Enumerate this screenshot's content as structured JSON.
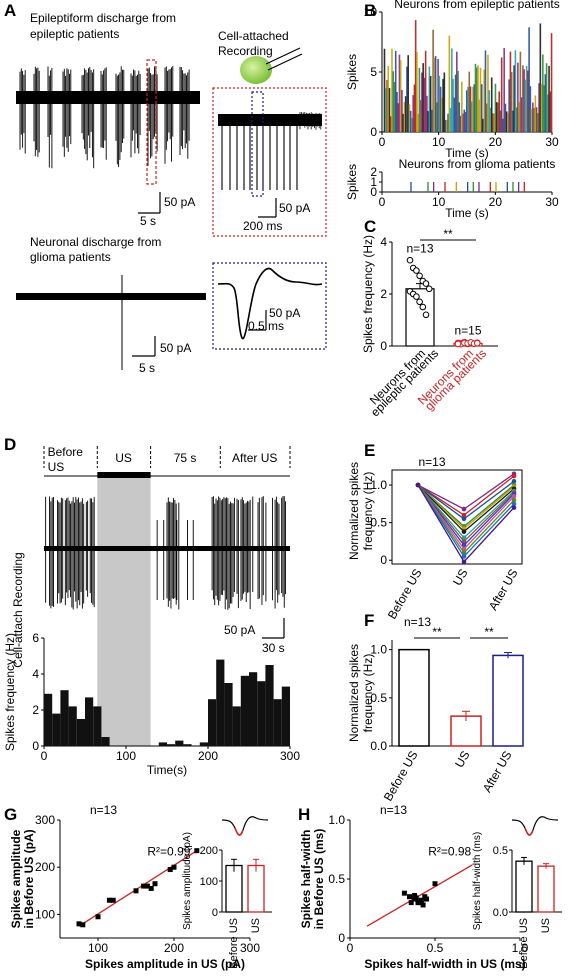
{
  "panels": {
    "A": {
      "letter": "A",
      "title_epi": "Epileptiform discharge from epileptic patients",
      "title_epi_line1": "Epileptiform discharge from",
      "title_epi_line2": "epileptic patients",
      "recording_label_line1": "Cell-attached",
      "recording_label_line2": "Recording",
      "scale_epi_amp": "50 pA",
      "scale_epi_time": "5 s",
      "scale_zoom1_amp": "50 pA",
      "scale_zoom1_time": "200 ms",
      "scale_zoom2_amp": "50 pA",
      "scale_zoom2_time": "0.5 ms",
      "title_glioma_line1": "Neuronal discharge from",
      "title_glioma_line2": "glioma patients",
      "scale_glioma_amp": "50 pA",
      "scale_glioma_time": "5 s"
    },
    "B": {
      "letter": "B"
    },
    "C": {
      "letter": "C"
    },
    "D": {
      "letter": "D",
      "phase_labels": [
        "Before US",
        "US",
        "75 s",
        "After US"
      ],
      "side_label": "Cell-attach Recording",
      "scale_amp": "50 pA",
      "scale_time": "30 s"
    },
    "E": {
      "letter": "E"
    },
    "F": {
      "letter": "F"
    },
    "G": {
      "letter": "G"
    },
    "H": {
      "letter": "H"
    }
  },
  "chart_data": [
    {
      "id": "B_epileptic",
      "type": "bar",
      "title": "Neurons from epileptic patients",
      "xlabel": "Time (s)",
      "ylabel": "Spikes",
      "xlim": [
        0,
        30
      ],
      "ylim": [
        0,
        10
      ],
      "xticks": [
        0,
        10,
        20,
        30
      ],
      "yticks": [
        0,
        5,
        10
      ],
      "series_colors": [
        "#1f4e9c",
        "#2a8c3c",
        "#7b2a8c",
        "#c8a000",
        "#1a1a1a",
        "#b01c1c",
        "#2aa0a0",
        "#8c5a2a"
      ]
    },
    {
      "id": "B_glioma",
      "type": "bar",
      "title": "Neurons from glioma patients",
      "xlabel": "Time (s)",
      "ylabel": "Spikes",
      "xlim": [
        0,
        30
      ],
      "ylim": [
        0,
        2
      ],
      "xticks": [
        0,
        10,
        20,
        30
      ],
      "yticks": [
        0,
        1,
        2
      ]
    },
    {
      "id": "C",
      "type": "bar",
      "ylabel": "Spikes frequency (Hz)",
      "ylim": [
        0,
        4
      ],
      "yticks": [
        0,
        2,
        4
      ],
      "categories": [
        "Neurons from epileptic patients",
        "Neurons from glioma patients"
      ],
      "category_lines": [
        [
          "Neurons from",
          "epileptic patients"
        ],
        [
          "Neurons from",
          "glioma patients"
        ]
      ],
      "values": [
        2.2,
        0.1
      ],
      "errors": [
        0.2,
        0.02
      ],
      "n_labels": [
        "n=13",
        "n=15"
      ],
      "significance": "**",
      "colors": [
        "#000000",
        "#cc2222"
      ],
      "points": [
        [
          3.3,
          3.0,
          2.9,
          2.7,
          2.5,
          2.4,
          2.2,
          2.1,
          2.0,
          1.9,
          1.7,
          1.5,
          1.2
        ],
        [
          0.12,
          0.1,
          0.15,
          0.08,
          0.11,
          0.09,
          0.13,
          0.1,
          0.07,
          0.12,
          0.1,
          0.14,
          0.09,
          0.11,
          0.08
        ]
      ]
    },
    {
      "id": "D_rate",
      "type": "bar",
      "ylabel": "Spikes frequency (Hz)",
      "xlabel": "Time(s)",
      "xlim": [
        0,
        300
      ],
      "ylim": [
        0,
        6
      ],
      "xticks": [
        0,
        100,
        200,
        300
      ],
      "yticks": [
        0,
        2,
        4,
        6
      ],
      "us_window": [
        65,
        130
      ],
      "bin_width": 10,
      "x": [
        5,
        15,
        25,
        35,
        45,
        55,
        65,
        75,
        85,
        95,
        105,
        115,
        125,
        135,
        145,
        155,
        165,
        175,
        185,
        195,
        205,
        215,
        225,
        235,
        245,
        255,
        265,
        275,
        285,
        295
      ],
      "values": [
        2.9,
        1.8,
        3.1,
        2.2,
        1.5,
        2.7,
        2.2,
        0.5,
        0.0,
        0.0,
        0.0,
        0.0,
        0.0,
        0.0,
        0.2,
        0.1,
        0.3,
        0.1,
        0.0,
        0.2,
        2.6,
        4.8,
        3.5,
        2.2,
        3.9,
        4.1,
        3.6,
        4.5,
        2.6,
        3.3
      ]
    },
    {
      "id": "E",
      "type": "line",
      "title": "n=13",
      "ylabel": "Normalized spikes frequency (Hz)",
      "categories": [
        "Before US",
        "US",
        "After US"
      ],
      "ylim": [
        -0.05,
        1.2
      ],
      "yticks": [
        0,
        0.5,
        1.0
      ],
      "series": [
        {
          "color": "#7b2a8c",
          "values": [
            1.0,
            0.68,
            1.15
          ]
        },
        {
          "color": "#cc2222",
          "values": [
            1.0,
            0.6,
            1.12
          ]
        },
        {
          "color": "#1f4e9c",
          "values": [
            1.0,
            0.55,
            1.05
          ]
        },
        {
          "color": "#2a8c3c",
          "values": [
            1.0,
            0.45,
            1.0
          ]
        },
        {
          "color": "#c8a000",
          "values": [
            1.0,
            0.42,
            0.98
          ]
        },
        {
          "color": "#1a1a1a",
          "values": [
            1.0,
            0.38,
            0.95
          ]
        },
        {
          "color": "#2aa0a0",
          "values": [
            1.0,
            0.3,
            0.92
          ]
        },
        {
          "color": "#8c5a2a",
          "values": [
            1.0,
            0.25,
            0.9
          ]
        },
        {
          "color": "#3c3ccc",
          "values": [
            1.0,
            0.2,
            0.88
          ]
        },
        {
          "color": "#cc4fa0",
          "values": [
            1.0,
            0.15,
            0.85
          ]
        },
        {
          "color": "#5a8c1a",
          "values": [
            1.0,
            0.1,
            0.8
          ]
        },
        {
          "color": "#1a6ecc",
          "values": [
            1.0,
            0.05,
            0.75
          ]
        },
        {
          "color": "#4a1a8c",
          "values": [
            1.0,
            -0.02,
            0.7
          ]
        }
      ]
    },
    {
      "id": "F",
      "type": "bar",
      "title": "n=13",
      "ylabel": "Normalized spikes frequency (Hz)",
      "categories": [
        "Before US",
        "US",
        "After US"
      ],
      "values": [
        1.0,
        0.31,
        0.94
      ],
      "errors": [
        0.0,
        0.05,
        0.03
      ],
      "colors": [
        "#000000",
        "#cc2222",
        "#1c1c8c"
      ],
      "ylim": [
        0,
        1.1
      ],
      "yticks": [
        0.0,
        0.5,
        1.0
      ],
      "significance": [
        "**",
        "**"
      ]
    },
    {
      "id": "G_scatter",
      "type": "scatter",
      "title": "n=13",
      "xlabel": "Spikes amplitude in US (pA)",
      "ylabel": "Spikes amplitude in Before US (pA)",
      "xlim": [
        50,
        300
      ],
      "ylim": [
        50,
        300
      ],
      "xticks": [
        100,
        200,
        300
      ],
      "yticks": [
        100,
        200,
        300
      ],
      "r2": "R²=0.99",
      "fit": [
        [
          75,
          75
        ],
        [
          230,
          235
        ]
      ],
      "x": [
        75,
        80,
        100,
        115,
        120,
        150,
        160,
        165,
        170,
        175,
        195,
        200,
        230
      ],
      "y": [
        80,
        78,
        95,
        130,
        130,
        150,
        160,
        160,
        155,
        165,
        195,
        200,
        235
      ]
    },
    {
      "id": "G_inset",
      "type": "bar",
      "ylabel": "Spikes amplitude (pA)",
      "categories": [
        "Before US",
        "US"
      ],
      "values": [
        150,
        150
      ],
      "errors": [
        20,
        20
      ],
      "colors": [
        "#000000",
        "#cc2222"
      ],
      "ylim": [
        0,
        200
      ],
      "yticks": [
        0,
        100,
        200
      ]
    },
    {
      "id": "H_scatter",
      "type": "scatter",
      "title": "n=13",
      "xlabel": "Spikes half-width in US (ms)",
      "ylabel": "Spikes half-width in Before US (ms)",
      "xlim": [
        0,
        1.0
      ],
      "ylim": [
        0,
        1.0
      ],
      "xticks": [
        0,
        0.5,
        1.0
      ],
      "yticks": [
        0,
        0.5,
        1.0
      ],
      "r2": "R²=0.98",
      "fit": [
        [
          0.1,
          0.1
        ],
        [
          0.72,
          0.62
        ]
      ],
      "x": [
        0.32,
        0.35,
        0.36,
        0.38,
        0.4,
        0.42,
        0.43,
        0.45,
        0.38,
        0.41,
        0.44,
        0.5,
        0.39
      ],
      "y": [
        0.38,
        0.35,
        0.3,
        0.33,
        0.3,
        0.32,
        0.28,
        0.33,
        0.36,
        0.3,
        0.35,
        0.46,
        0.34
      ]
    },
    {
      "id": "H_inset",
      "type": "bar",
      "ylabel": "Spikes half-width (ms)",
      "categories": [
        "Before US",
        "US"
      ],
      "values": [
        0.41,
        0.37
      ],
      "errors": [
        0.03,
        0.02
      ],
      "colors": [
        "#000000",
        "#cc2222"
      ],
      "ylim": [
        0,
        0.5
      ],
      "yticks": [
        0.0,
        0.5
      ]
    }
  ]
}
